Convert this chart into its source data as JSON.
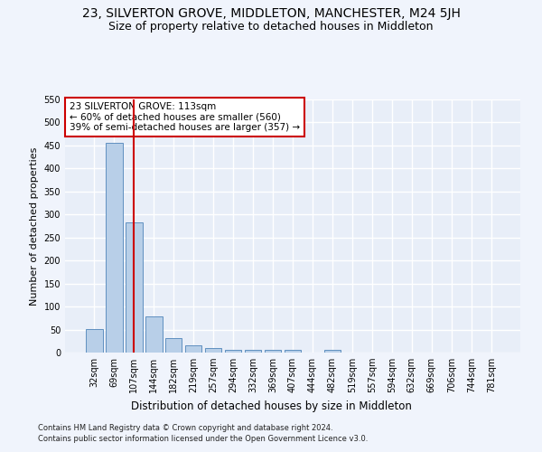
{
  "title1": "23, SILVERTON GROVE, MIDDLETON, MANCHESTER, M24 5JH",
  "title2": "Size of property relative to detached houses in Middleton",
  "xlabel": "Distribution of detached houses by size in Middleton",
  "ylabel": "Number of detached properties",
  "categories": [
    "32sqm",
    "69sqm",
    "107sqm",
    "144sqm",
    "182sqm",
    "219sqm",
    "257sqm",
    "294sqm",
    "332sqm",
    "369sqm",
    "407sqm",
    "444sqm",
    "482sqm",
    "519sqm",
    "557sqm",
    "594sqm",
    "632sqm",
    "669sqm",
    "706sqm",
    "744sqm",
    "781sqm"
  ],
  "values": [
    52,
    456,
    283,
    78,
    31,
    15,
    10,
    5,
    5,
    6,
    5,
    0,
    6,
    0,
    0,
    0,
    0,
    0,
    0,
    0,
    0
  ],
  "bar_color": "#b8cfe8",
  "bar_edge_color": "#6090c0",
  "vline_x": 2,
  "vline_color": "#cc0000",
  "annotation_text": "23 SILVERTON GROVE: 113sqm\n← 60% of detached houses are smaller (560)\n39% of semi-detached houses are larger (357) →",
  "annotation_box_color": "#ffffff",
  "annotation_box_edge_color": "#cc0000",
  "ylim": [
    0,
    550
  ],
  "yticks": [
    0,
    50,
    100,
    150,
    200,
    250,
    300,
    350,
    400,
    450,
    500,
    550
  ],
  "footer1": "Contains HM Land Registry data © Crown copyright and database right 2024.",
  "footer2": "Contains public sector information licensed under the Open Government Licence v3.0.",
  "bg_color": "#e8eef8",
  "grid_color": "#ffffff",
  "title1_fontsize": 10,
  "title2_fontsize": 9,
  "tick_fontsize": 7,
  "ylabel_fontsize": 8,
  "xlabel_fontsize": 8.5,
  "footer_fontsize": 6,
  "annot_fontsize": 7.5
}
